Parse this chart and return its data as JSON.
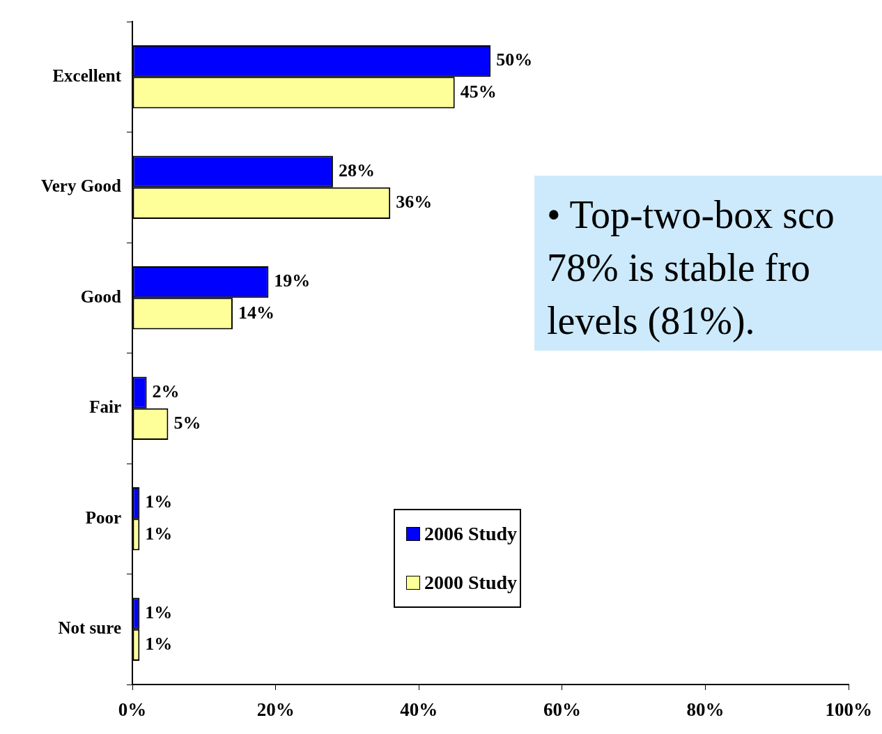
{
  "chart_data": {
    "type": "bar",
    "orientation": "horizontal",
    "categories": [
      "Excellent",
      "Very Good",
      "Good",
      "Fair",
      "Poor",
      "Not sure"
    ],
    "series": [
      {
        "name": "2006 Study",
        "color": "#0000ff",
        "values": [
          50,
          28,
          19,
          2,
          1,
          1
        ],
        "value_labels": [
          "50%",
          "28%",
          "19%",
          "2%",
          "1%",
          "1%"
        ]
      },
      {
        "name": "2000 Study",
        "color": "#ffff99",
        "values": [
          45,
          36,
          14,
          5,
          1,
          1
        ],
        "value_labels": [
          "45%",
          "36%",
          "14%",
          "5%",
          "1%",
          "1%"
        ]
      }
    ],
    "xlim": [
      0,
      100
    ],
    "xticks": [
      {
        "value": 0,
        "label": "0%"
      },
      {
        "value": 20,
        "label": "20%"
      },
      {
        "value": 40,
        "label": "40%"
      },
      {
        "value": 60,
        "label": "60%"
      },
      {
        "value": 80,
        "label": "80%"
      },
      {
        "value": 100,
        "label": "100%"
      }
    ],
    "grid": false,
    "legend": "bottom right",
    "annotations": [
      "• Top-two-box sco\n78% is stable fro\nlevels (81%)."
    ]
  }
}
